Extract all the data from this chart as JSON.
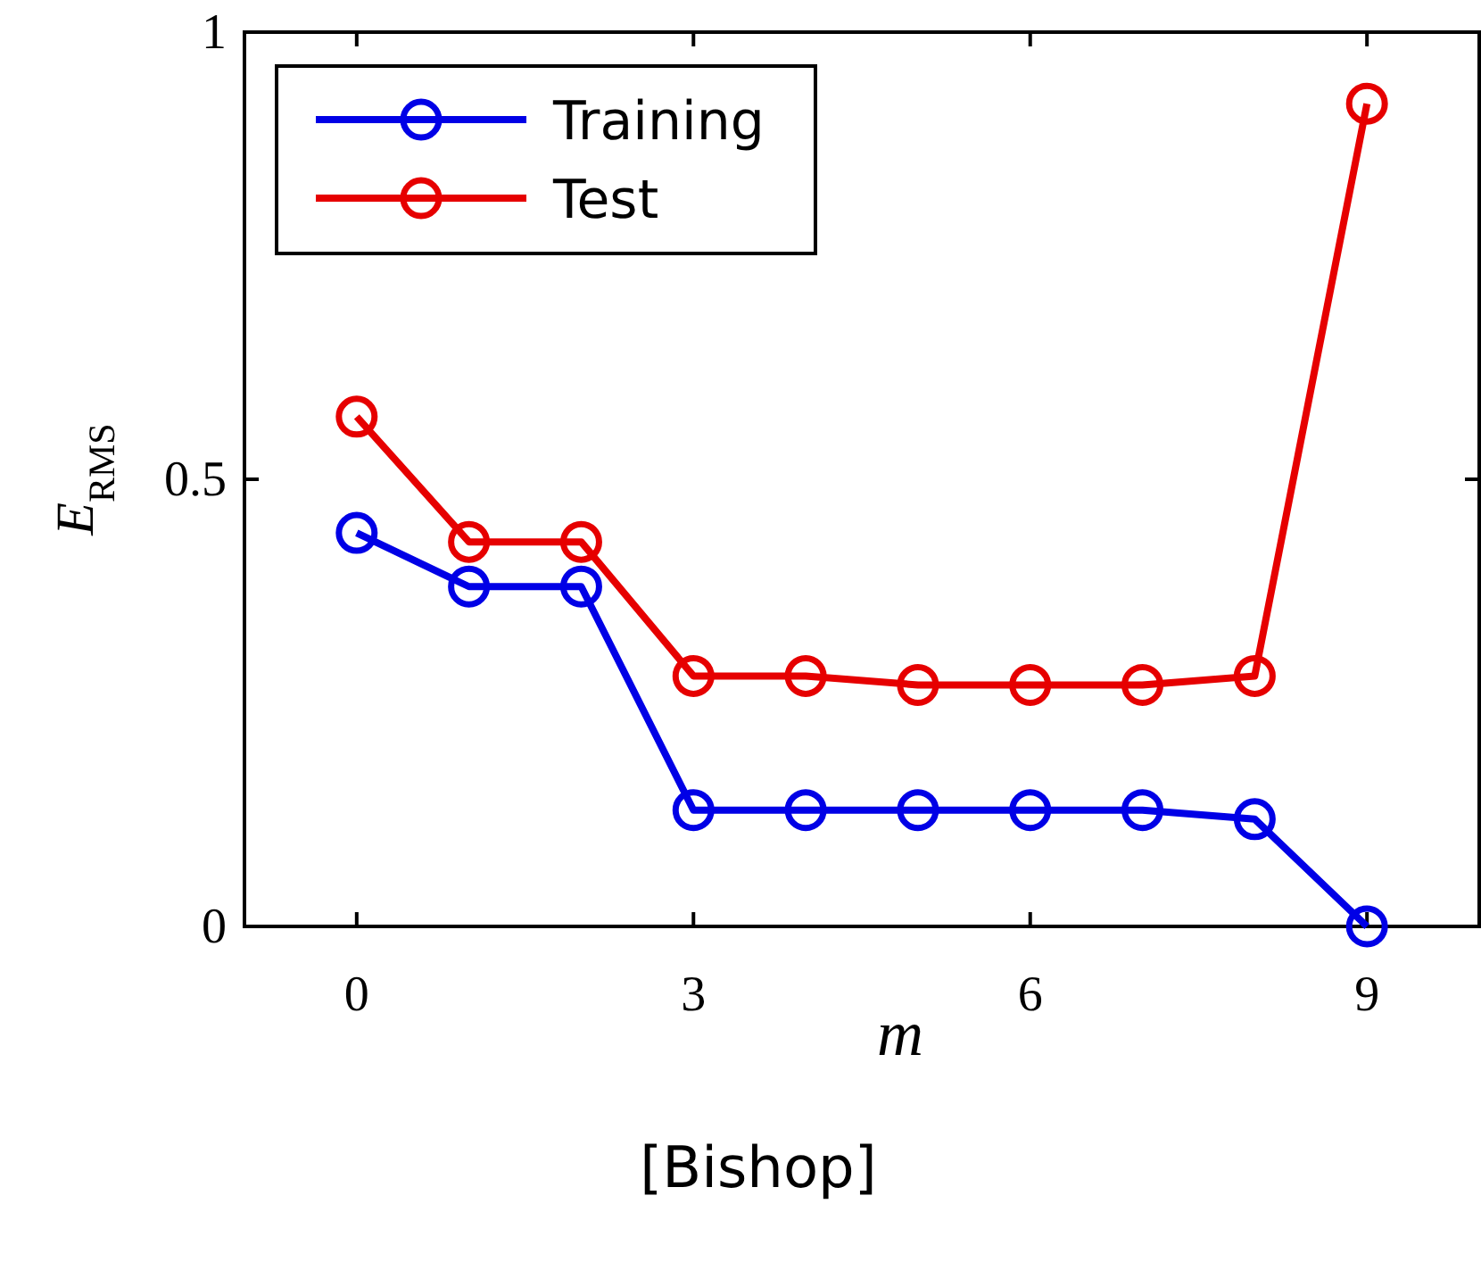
{
  "chart_data": {
    "type": "line",
    "xlabel": "m",
    "ylabel": "E$_{RMS}$",
    "x": [
      0,
      1,
      2,
      3,
      4,
      5,
      6,
      7,
      8,
      9
    ],
    "xlim": [
      -1,
      10
    ],
    "xticks": [
      0,
      3,
      6,
      9
    ],
    "ylim": [
      0,
      1
    ],
    "yticks": [
      0,
      0.5,
      1
    ],
    "marker": "circle",
    "legend": "top left",
    "grid": false,
    "annotations": [
      "[Bishop]"
    ],
    "series": [
      {
        "name": "Training",
        "color": "#0000e6",
        "values": [
          0.44,
          0.38,
          0.38,
          0.13,
          0.13,
          0.13,
          0.13,
          0.13,
          0.12,
          0.0
        ]
      },
      {
        "name": "Test",
        "color": "#e60000",
        "values": [
          0.57,
          0.43,
          0.43,
          0.28,
          0.28,
          0.27,
          0.27,
          0.27,
          0.28,
          0.92
        ]
      }
    ]
  }
}
